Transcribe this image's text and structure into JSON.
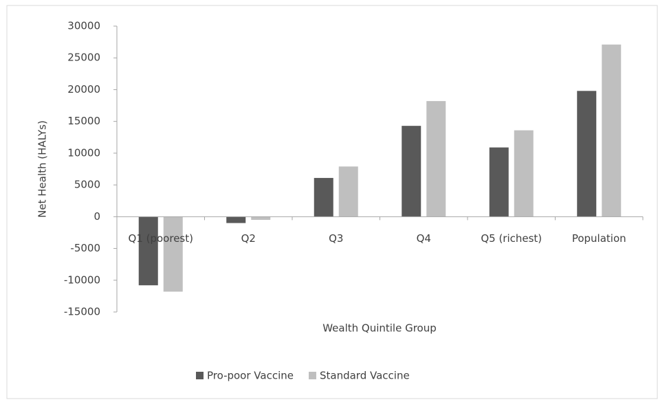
{
  "chart_data": {
    "type": "bar",
    "x_label": "Wealth Quintile Group",
    "y_label": "Net Health (HALYs)",
    "categories": [
      "Q1 (poorest)",
      "Q2",
      "Q3",
      "Q4",
      "Q5 (richest)",
      "Population"
    ],
    "series": [
      {
        "name": "Pro-poor Vaccine",
        "color": "#595959",
        "values": [
          -10800,
          -1000,
          6100,
          14300,
          10900,
          19800
        ]
      },
      {
        "name": "Standard Vaccine",
        "color": "#bfbfbf",
        "values": [
          -11800,
          -500,
          7900,
          18200,
          13600,
          27100
        ]
      }
    ],
    "ylim": [
      -15000,
      30000
    ],
    "yticks": [
      -15000,
      -10000,
      -5000,
      0,
      5000,
      10000,
      15000,
      20000,
      25000,
      30000
    ],
    "legend": "bottom"
  }
}
